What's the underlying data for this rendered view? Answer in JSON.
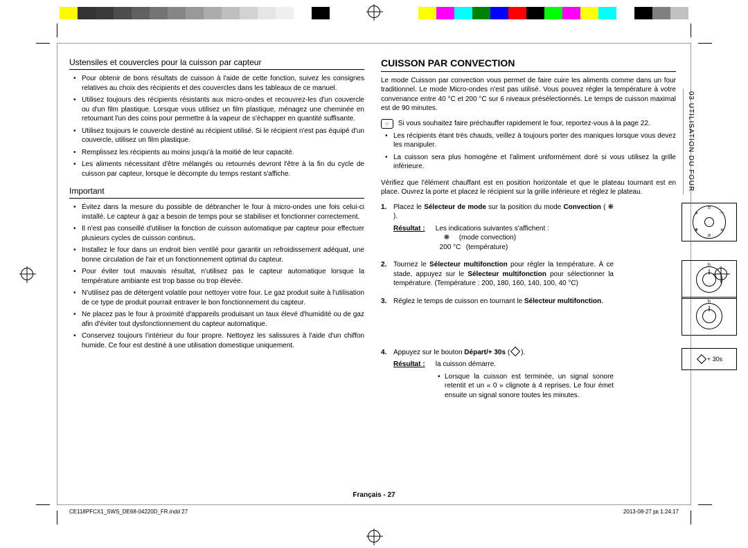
{
  "colorbar_left": [
    "#ffffff",
    "#fafa00",
    "#333333",
    "#3a3a3a",
    "#4d4d4d",
    "#606060",
    "#737373",
    "#868686",
    "#999999",
    "#acacac",
    "#bfbfbf",
    "#d2d2d2",
    "#e5e5e5",
    "#f0f0f0",
    "#ffffff",
    "#000000"
  ],
  "colorbar_right": [
    "#ffff00",
    "#ff00ff",
    "#00ffff",
    "#008000",
    "#0000ff",
    "#ff0000",
    "#000000",
    "#00ff00",
    "#ff00ff",
    "#ffff00",
    "#00ffff",
    "#ffffff",
    "#000000",
    "#808080",
    "#c0c0c0",
    "#ffffff"
  ],
  "side_tab": "03  UTILISATION DU FOUR",
  "left": {
    "subhead1": "Ustensiles et couvercles pour la cuisson par capteur",
    "bullets1": [
      "Pour obtenir de bons résultats de cuisson à l'aide de cette fonction, suivez les consignes relatives au choix des récipients et des couvercles dans les tableaux de ce manuel.",
      "Utilisez toujours des récipients résistants aux micro-ondes et recouvrez-les d'un couvercle ou d'un film plastique. Lorsque vous utilisez un film plastique, ménagez une cheminée en retournant l'un des coins pour permettre à la vapeur de s'échapper en quantité suffisante.",
      "Utilisez toujours le couvercle destiné au récipient utilisé. Si le récipient n'est pas équipé d'un couvercle, utilisez un film plastique.",
      "Remplissez les récipients au moins jusqu'à la moitié de leur capacité.",
      "Les aliments nécessitant d'être mélangés ou retournés devront l'être à la fin du cycle de cuisson par capteur, lorsque le décompte du temps restant s'affiche."
    ],
    "subhead2": "Important",
    "bullets2": [
      "Évitez dans la mesure du possible de débrancher le four à micro-ondes une fois celui-ci installé. Le capteur à gaz a besoin de temps pour se stabiliser et fonctionner correctement.",
      "Il n'est pas conseillé d'utiliser la fonction de cuisson automatique par capteur pour effectuer plusieurs cycles de cuisson continus.",
      "Installez le four dans un endroit bien ventilé pour garantir un refroidissement adéquat, une bonne circulation de l'air et un fonctionnement optimal du capteur.",
      "Pour éviter tout mauvais résultat, n'utilisez pas le capteur automatique lorsque la température ambiante est trop basse ou trop élevée.",
      "N'utilisez pas de détergent volatile pour nettoyer votre four. Le gaz produit suite à l'utilisation de ce type de produit pourrait entraver le bon fonctionnement du capteur.",
      "Ne placez pas le four à proximité d'appareils produisant un taux élevé d'humidité ou de gaz afin d'éviter tout dysfonctionnement du capteur automatique.",
      "Conservez toujours l'intérieur du four propre. Nettoyez les salissures à l'aide d'un chiffon humide. Ce four est destiné à une utilisation domestique uniquement."
    ]
  },
  "right": {
    "mainhead": "CUISSON PAR CONVECTION",
    "intro": "Le mode Cuisson par convection vous permet de faire cuire les aliments comme dans un four traditionnel. Le mode Micro-ondes n'est pas utilisé. Vous pouvez régler la température à votre convenance entre 40 °C et 200 °C sur 6 niveaux présélectionnés. Le temps de cuisson maximal est de 90 minutes.",
    "note_icon": "☞",
    "note_text": "Si vous souhaitez faire préchauffer rapidement le four, reportez-vous à la page 22.",
    "note_bullets": [
      "Les récipients étant très chauds, veillez à toujours porter des maniques lorsque vous devez les manipuler.",
      "La cuisson sera plus homogène et l'aliment uniformément doré si vous utilisez la grille inférieure."
    ],
    "verify": "Vérifiez que l'élément chauffant est en position horizontale et que le plateau tournant est en place. Ouvrez la porte et placez le récipient sur la grille inférieure et réglez le plateau.",
    "step1_a": "Placez le ",
    "step1_b": "Sélecteur de mode",
    "step1_c": " sur la position du mode ",
    "step1_d": "Convection",
    "step1_e": " ( ❋ ).",
    "result_label": "Résultat :",
    "step1_result": "Les indications suivantes s'affichent :",
    "step1_line_a_icon": "❋",
    "step1_line_a": "(mode convection)",
    "step1_line_b_val": "200 °C",
    "step1_line_b": "(température)",
    "step2_a": "Tournez le ",
    "step2_b": "Sélecteur multifonction",
    "step2_c": " pour régler la température. À ce stade, appuyez sur le ",
    "step2_d": "Sélecteur multifonction",
    "step2_e": " pour sélectionner la température. (Température : 200, 180, 160, 140, 100, 40 °C)",
    "step3_a": "Réglez le temps de cuisson en tournant le ",
    "step3_b": "Sélecteur multifonction",
    "step3_c": ".",
    "step4_a": "Appuyez sur le bouton ",
    "step4_b": "Départ/+ 30s",
    "step4_c": " (",
    "step4_d": ").",
    "step4_result": "la cuisson démarre.",
    "step4_bullet": "Lorsque la cuisson est terminée, un signal sonore retentit et un « 0 » clignote à 4 reprises. Le four émet ensuite un signal sonore toutes les minutes.",
    "start_label": "+ 30s",
    "dial_h": "h"
  },
  "footer": {
    "center": "Français - 27",
    "left": "CE118PFCX1_SWS_DE68-04220D_FR.indd   27",
    "right": "2013-08-27   ㏘ 1:24:17"
  }
}
